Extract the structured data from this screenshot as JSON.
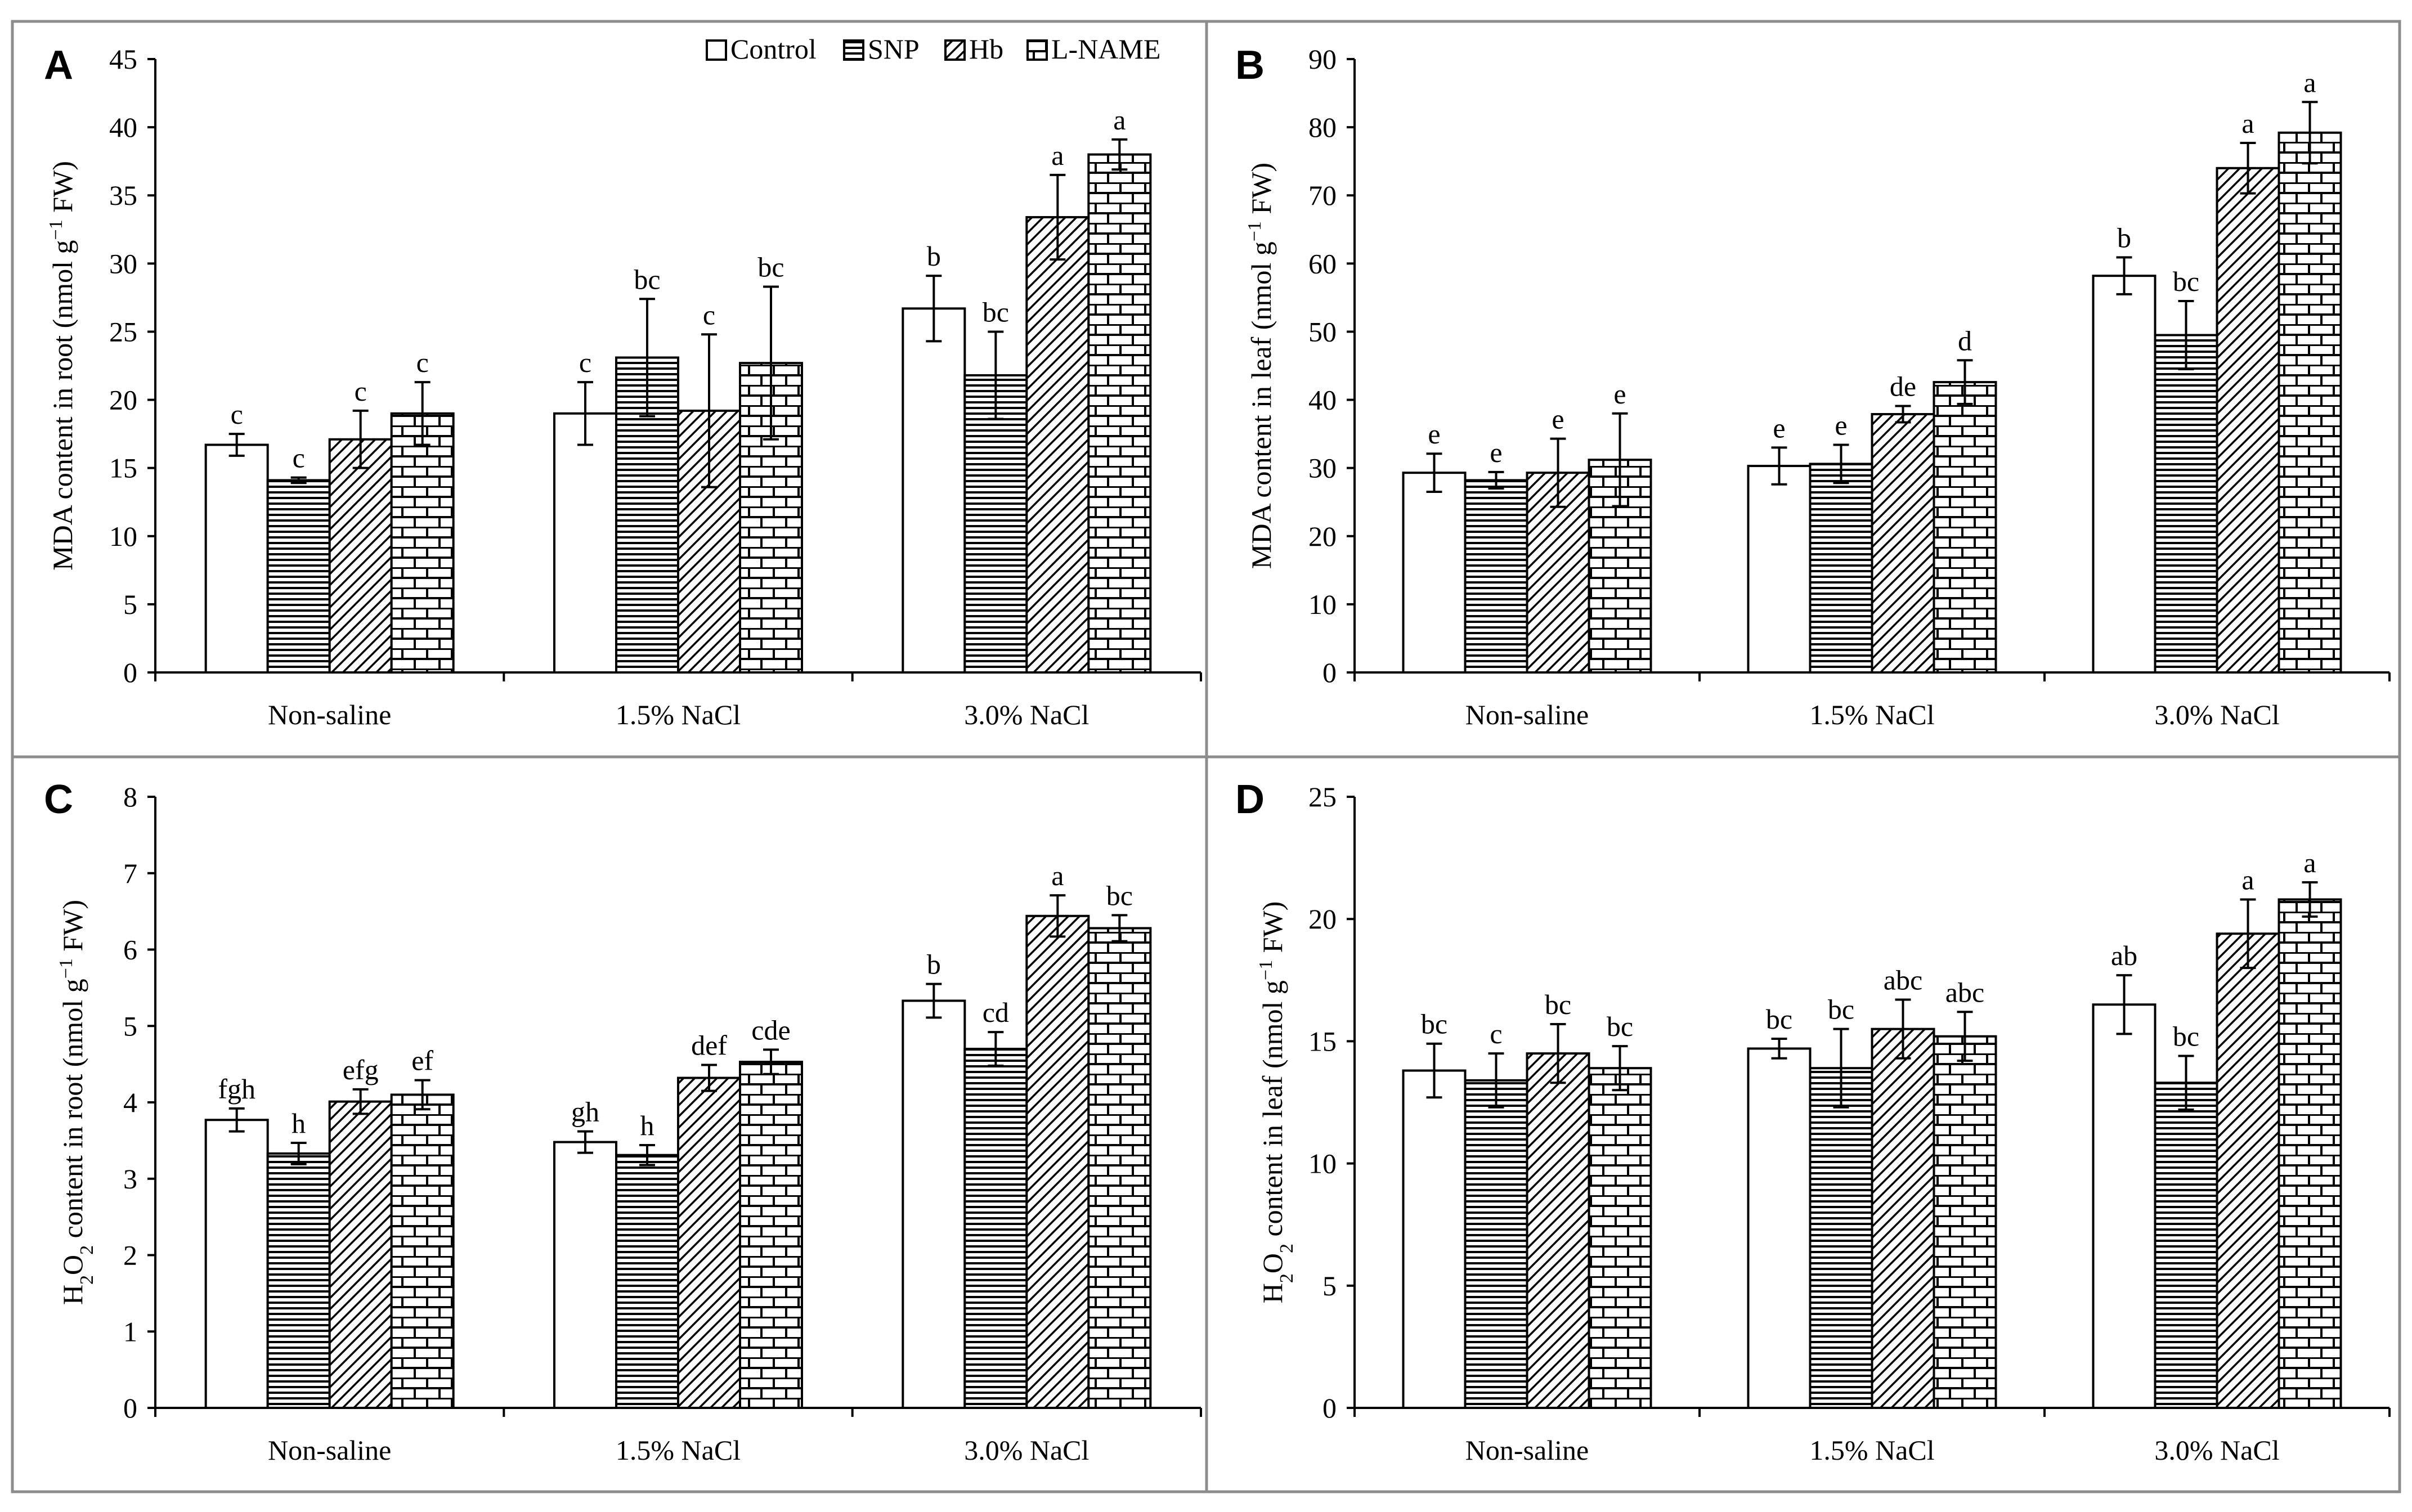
{
  "figure": {
    "legend": [
      {
        "name": "Control",
        "pattern": "control"
      },
      {
        "name": "SNP",
        "pattern": "snp"
      },
      {
        "name": "Hb",
        "pattern": "hb"
      },
      {
        "name": "L-NAME",
        "pattern": "lname"
      }
    ],
    "categories": [
      "Non-saline",
      "1.5% NaCl",
      "3.0% NaCl"
    ]
  },
  "chart_data": [
    {
      "type": "bar",
      "panel": "A",
      "ylabel_main": "MDA content in root (nmol g",
      "ylabel_sup": "−1",
      "ylabel_end": " FW)",
      "ylim": [
        0,
        45
      ],
      "yticks": [
        "0",
        "5",
        "10",
        "15",
        "20",
        "25",
        "30",
        "35",
        "40",
        "45"
      ],
      "ytick_values": [
        0,
        5,
        10,
        15,
        20,
        25,
        30,
        35,
        40,
        45
      ],
      "categories": [
        "Non-saline",
        "1.5% NaCl",
        "3.0% NaCl"
      ],
      "series": [
        {
          "name": "Control",
          "values": [
            16.7,
            19.0,
            26.7
          ],
          "errors": [
            0.8,
            2.3,
            2.4
          ],
          "letters": [
            "c",
            "c",
            "b"
          ]
        },
        {
          "name": "SNP",
          "values": [
            14.1,
            23.1,
            21.8
          ],
          "errors": [
            0.2,
            4.3,
            3.2
          ],
          "letters": [
            "c",
            "bc",
            "bc"
          ]
        },
        {
          "name": "Hb",
          "values": [
            17.1,
            19.2,
            33.4
          ],
          "errors": [
            2.1,
            5.6,
            3.1
          ],
          "letters": [
            "c",
            "c",
            "a"
          ]
        },
        {
          "name": "L-NAME",
          "values": [
            19.0,
            22.7,
            38.0
          ],
          "errors": [
            2.3,
            5.6,
            1.1
          ],
          "letters": [
            "c",
            "bc",
            "a"
          ]
        }
      ]
    },
    {
      "type": "bar",
      "panel": "B",
      "ylabel_main": "MDA content in leaf (nmol g",
      "ylabel_sup": "−1",
      "ylabel_end": " FW)",
      "ylim": [
        0,
        90
      ],
      "yticks": [
        "0",
        "10",
        "20",
        "30",
        "40",
        "50",
        "60",
        "70",
        "80",
        "90"
      ],
      "ytick_values": [
        0,
        10,
        20,
        30,
        40,
        50,
        60,
        70,
        80,
        90
      ],
      "categories": [
        "Non-saline",
        "1.5% NaCl",
        "3.0% NaCl"
      ],
      "series": [
        {
          "name": "Control",
          "values": [
            29.3,
            30.3,
            58.2
          ],
          "errors": [
            2.8,
            2.7,
            2.7
          ],
          "letters": [
            "e",
            "e",
            "b"
          ]
        },
        {
          "name": "SNP",
          "values": [
            28.2,
            30.6,
            49.5
          ],
          "errors": [
            1.2,
            2.8,
            5.0
          ],
          "letters": [
            "e",
            "e",
            "bc"
          ]
        },
        {
          "name": "Hb",
          "values": [
            29.3,
            37.9,
            74.0
          ],
          "errors": [
            5.0,
            1.2,
            3.7
          ],
          "letters": [
            "e",
            "de",
            "a"
          ]
        },
        {
          "name": "L-NAME",
          "values": [
            31.2,
            42.6,
            79.2
          ],
          "errors": [
            6.8,
            3.2,
            4.5
          ],
          "letters": [
            "e",
            "d",
            "a"
          ]
        }
      ]
    },
    {
      "type": "bar",
      "panel": "C",
      "ylabel_main": "H",
      "ylabel_sub": "2",
      "ylabel_mid": "O",
      "ylabel_sub2": "2",
      "ylabel_rest": " content in root (nmol g",
      "ylabel_sup": "−1",
      "ylabel_end": " FW)",
      "ylim": [
        0,
        8
      ],
      "yticks": [
        "0",
        "1",
        "2",
        "3",
        "4",
        "5",
        "6",
        "7",
        "8"
      ],
      "ytick_values": [
        0,
        1,
        2,
        3,
        4,
        5,
        6,
        7,
        8
      ],
      "categories": [
        "Non-saline",
        "1.5% NaCl",
        "3.0% NaCl"
      ],
      "series": [
        {
          "name": "Control",
          "values": [
            3.77,
            3.48,
            5.33
          ],
          "errors": [
            0.15,
            0.14,
            0.22
          ],
          "letters": [
            "fgh",
            "gh",
            "b"
          ]
        },
        {
          "name": "SNP",
          "values": [
            3.33,
            3.31,
            4.7
          ],
          "errors": [
            0.14,
            0.13,
            0.22
          ],
          "letters": [
            "h",
            "h",
            "cd"
          ]
        },
        {
          "name": "Hb",
          "values": [
            4.01,
            4.32,
            6.44
          ],
          "errors": [
            0.16,
            0.17,
            0.27
          ],
          "letters": [
            "efg",
            "def",
            "a"
          ]
        },
        {
          "name": "L-NAME",
          "values": [
            4.1,
            4.53,
            6.28
          ],
          "errors": [
            0.19,
            0.16,
            0.17
          ],
          "letters": [
            "ef",
            "cde",
            "bc"
          ]
        }
      ]
    },
    {
      "type": "bar",
      "panel": "D",
      "ylabel_main": "H",
      "ylabel_sub": "2",
      "ylabel_mid": "O",
      "ylabel_sub2": "2",
      "ylabel_rest": " content in leaf (nmol g",
      "ylabel_sup": "−1",
      "ylabel_end": " FW)",
      "ylim": [
        0,
        25
      ],
      "yticks": [
        "0",
        "5",
        "10",
        "15",
        "20",
        "25"
      ],
      "ytick_values": [
        0,
        5,
        10,
        15,
        20,
        25
      ],
      "categories": [
        "Non-saline",
        "1.5% NaCl",
        "3.0% NaCl"
      ],
      "series": [
        {
          "name": "Control",
          "values": [
            13.8,
            14.7,
            16.5
          ],
          "errors": [
            1.1,
            0.4,
            1.2
          ],
          "letters": [
            "bc",
            "bc",
            "ab"
          ]
        },
        {
          "name": "SNP",
          "values": [
            13.4,
            13.9,
            13.3
          ],
          "errors": [
            1.1,
            1.6,
            1.1
          ],
          "letters": [
            "c",
            "bc",
            "bc"
          ]
        },
        {
          "name": "Hb",
          "values": [
            14.5,
            15.5,
            19.4
          ],
          "errors": [
            1.2,
            1.2,
            1.4
          ],
          "letters": [
            "bc",
            "abc",
            "a"
          ]
        },
        {
          "name": "L-NAME",
          "values": [
            13.9,
            15.2,
            20.8
          ],
          "errors": [
            0.9,
            1.0,
            0.7
          ],
          "letters": [
            "bc",
            "abc",
            "a"
          ]
        }
      ]
    }
  ]
}
